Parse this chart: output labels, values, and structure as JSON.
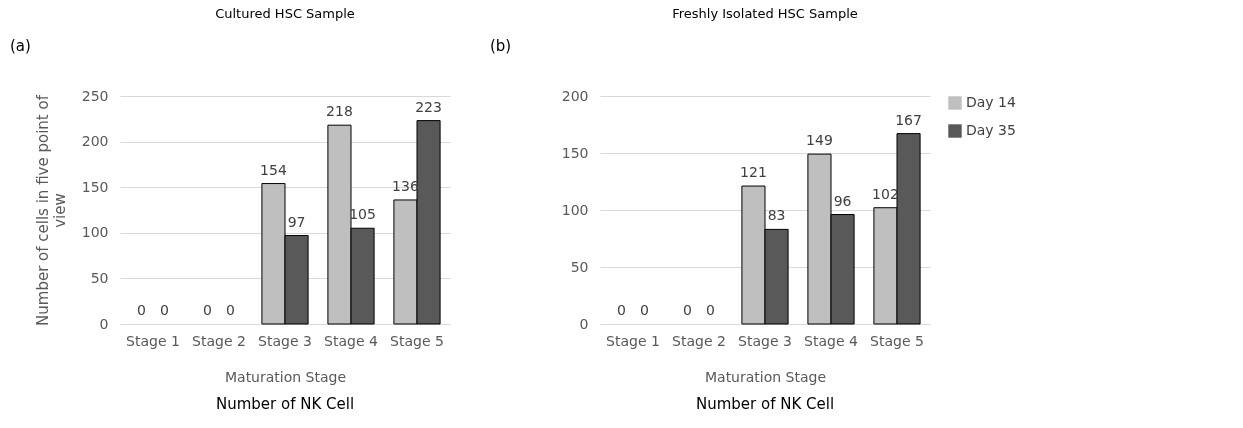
{
  "chart_data": [
    {
      "type": "bar",
      "title": "Cultured HSC Sample",
      "xlabel": "Maturation Stage",
      "ylabel": "Number of cells in five point of view",
      "categories": [
        "Stage 1",
        "Stage 2",
        "Stage 3",
        "Stage 4",
        "Stage 5"
      ],
      "series": [
        {
          "color": "#bfbfbf",
          "values": [
            0,
            0,
            154,
            218,
            136
          ]
        },
        {
          "color": "#595959",
          "values": [
            0,
            0,
            97,
            105,
            223
          ]
        }
      ],
      "ylim": [
        0,
        250
      ],
      "yticks": [
        0,
        50,
        100,
        150,
        200,
        250
      ],
      "grid": "y",
      "data_labels": true,
      "legend": false,
      "annotations": [
        "(a)",
        "Number of NK Cell"
      ]
    },
    {
      "type": "bar",
      "title": "Freshly Isolated HSC Sample",
      "xlabel": "Maturation Stage",
      "categories": [
        "Stage 1",
        "Stage 2",
        "Stage 3",
        "Stage 4",
        "Stage 5"
      ],
      "series": [
        {
          "name": "Day 14",
          "color": "#bfbfbf",
          "values": [
            0,
            0,
            121,
            149,
            102
          ]
        },
        {
          "name": "Day 35",
          "color": "#595959",
          "values": [
            0,
            0,
            83,
            96,
            167
          ]
        }
      ],
      "ylim": [
        0,
        200
      ],
      "yticks": [
        0,
        50,
        100,
        150,
        200
      ],
      "grid": "y",
      "data_labels": true,
      "legend": "right",
      "annotations": [
        "(b)",
        "Number of NK Cell"
      ]
    }
  ]
}
